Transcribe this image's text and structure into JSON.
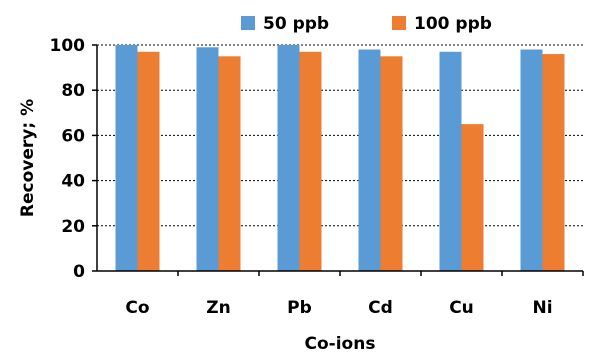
{
  "chart_data": {
    "type": "bar",
    "title": "",
    "xlabel": "Co-ions",
    "ylabel": "Recovery; %",
    "ylim": [
      0,
      100
    ],
    "yticks": [
      0,
      20,
      40,
      60,
      80,
      100
    ],
    "grid": true,
    "legend_position": "top",
    "categories": [
      "Co",
      "Zn",
      "Pb",
      "Cd",
      "Cu",
      "Ni"
    ],
    "series": [
      {
        "name": "50 ppb",
        "color": "#5B9BD5",
        "values": [
          100,
          99,
          100,
          98,
          97,
          98
        ]
      },
      {
        "name": "100 ppb",
        "color": "#ED7D31",
        "values": [
          97,
          95,
          97,
          95,
          65,
          96
        ]
      }
    ]
  }
}
